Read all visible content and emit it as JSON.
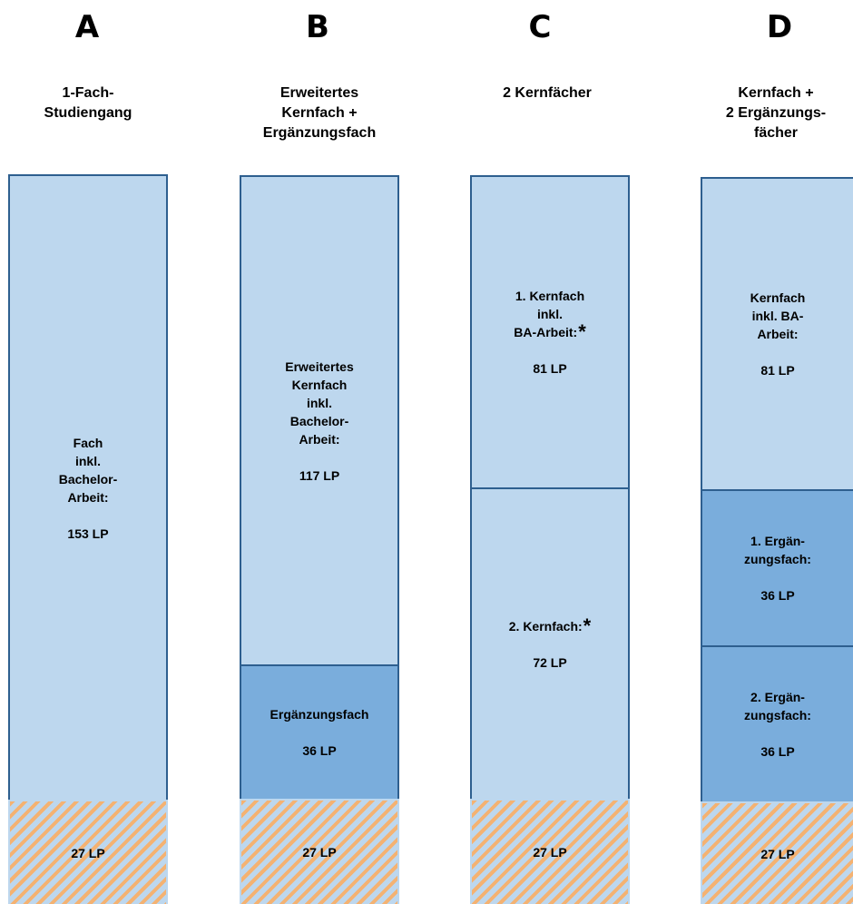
{
  "columns": [
    {
      "letter": "A",
      "heading": [
        "1-Fach-",
        "Studiengang"
      ],
      "blocks": [
        {
          "lines": [
            "Fach",
            "inkl.",
            "Bachelor-",
            "Arbeit:"
          ],
          "value": "153 LP",
          "star": ""
        },
        {
          "lines": [],
          "value": "27 LP",
          "star": ""
        }
      ]
    },
    {
      "letter": "B",
      "heading": [
        "Erweitertes",
        "Kernfach +",
        "Ergänzungsfach"
      ],
      "blocks": [
        {
          "lines": [
            "Erweitertes",
            "Kernfach",
            "inkl.",
            "Bachelor-",
            "Arbeit:"
          ],
          "value": "117 LP",
          "star": ""
        },
        {
          "lines": [
            "Ergänzungsfach"
          ],
          "value": "36 LP",
          "star": ""
        },
        {
          "lines": [],
          "value": "27 LP",
          "star": ""
        }
      ]
    },
    {
      "letter": "C",
      "heading": [
        "2 Kernfächer"
      ],
      "blocks": [
        {
          "lines": [
            "1. Kernfach",
            "inkl.",
            "BA-Arbeit:"
          ],
          "value": "81 LP",
          "star": "*"
        },
        {
          "lines": [
            "2. Kernfach:"
          ],
          "value": "72 LP",
          "star": "*"
        },
        {
          "lines": [],
          "value": "27 LP",
          "star": ""
        }
      ]
    },
    {
      "letter": "D",
      "heading": [
        "Kernfach +",
        "2 Ergänzungs-",
        "fächer"
      ],
      "blocks": [
        {
          "lines": [
            "Kernfach",
            "inkl. BA-",
            "Arbeit:"
          ],
          "value": "81 LP",
          "star": ""
        },
        {
          "lines": [
            "1. Ergän-",
            "zungsfach:"
          ],
          "value": "36 LP",
          "star": ""
        },
        {
          "lines": [
            "2. Ergän-",
            "zungsfach:"
          ],
          "value": "36 LP",
          "star": ""
        },
        {
          "lines": [],
          "value": "27 LP",
          "star": ""
        }
      ]
    }
  ]
}
